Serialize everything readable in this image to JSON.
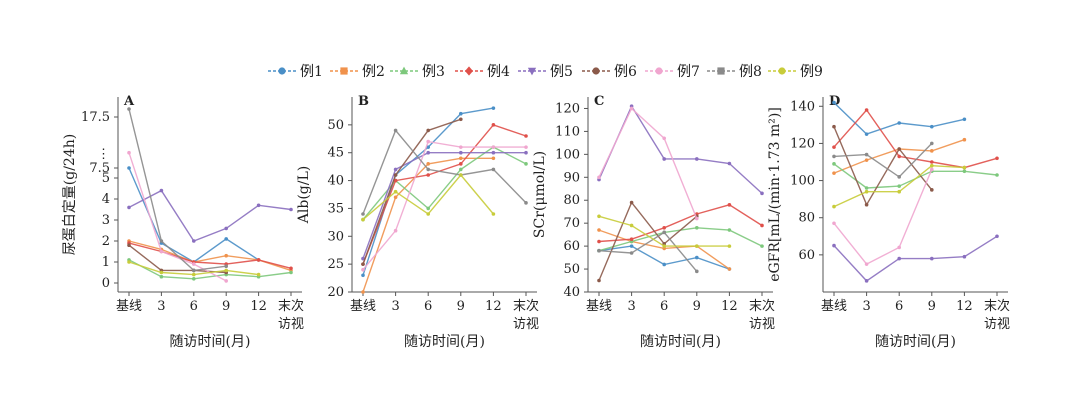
{
  "legend": [
    {
      "name": "例1",
      "color": "#4a8fc7",
      "marker": "circle"
    },
    {
      "name": "例2",
      "color": "#f0924c",
      "marker": "square"
    },
    {
      "name": "例3",
      "color": "#7dc87c",
      "marker": "triangle"
    },
    {
      "name": "例4",
      "color": "#e0504a",
      "marker": "diamond"
    },
    {
      "name": "例5",
      "color": "#8a6fbf",
      "marker": "triangle-down"
    },
    {
      "name": "例6",
      "color": "#8b5a4a",
      "marker": "circle"
    },
    {
      "name": "例7",
      "color": "#f0a6cf",
      "marker": "circle"
    },
    {
      "name": "例8",
      "color": "#8a8a8a",
      "marker": "square"
    },
    {
      "name": "例9",
      "color": "#c8cc3a",
      "marker": "circle"
    }
  ],
  "chart_data": [
    {
      "type": "line",
      "panel": "A",
      "x_categories": [
        "基线",
        "3",
        "6",
        "9",
        "12",
        "末次\n访视"
      ],
      "xlabel": "随访时间(月)",
      "ylabel": "尿蛋白定量(g/24h)",
      "yticks": [
        "0",
        "1",
        "2",
        "3",
        "4",
        "5",
        "7.5",
        "⋮",
        "17.5"
      ],
      "series": [
        {
          "name": "例1",
          "values": [
            7.5,
            1.9,
            1.0,
            2.1,
            1.1,
            null
          ]
        },
        {
          "name": "例2",
          "values": [
            2.0,
            1.6,
            1.0,
            1.3,
            1.1,
            0.6
          ]
        },
        {
          "name": "例3",
          "values": [
            1.1,
            0.3,
            0.2,
            0.4,
            0.3,
            0.5
          ]
        },
        {
          "name": "例4",
          "values": [
            1.9,
            1.5,
            1.0,
            0.9,
            1.1,
            0.7
          ]
        },
        {
          "name": "例5",
          "values": [
            3.6,
            4.4,
            2.0,
            2.6,
            3.7,
            3.5
          ]
        },
        {
          "name": "例6",
          "values": [
            1.8,
            0.6,
            0.6,
            0.5,
            null,
            null
          ]
        },
        {
          "name": "例7",
          "values": [
            10.5,
            1.5,
            0.9,
            0.1,
            null,
            null
          ]
        },
        {
          "name": "例8",
          "values": [
            18.5,
            2.0,
            0.6,
            0.8,
            null,
            null
          ]
        },
        {
          "name": "例9",
          "values": [
            1.0,
            0.5,
            0.4,
            0.6,
            0.4,
            null
          ]
        }
      ]
    },
    {
      "type": "line",
      "panel": "B",
      "x_categories": [
        "基线",
        "3",
        "6",
        "9",
        "12",
        "末次\n访视"
      ],
      "xlabel": "随访时间(月)",
      "ylabel": "Alb(g/L)",
      "ylim": [
        20,
        55
      ],
      "yticks": [
        "20",
        "25",
        "30",
        "35",
        "40",
        "45",
        "50"
      ],
      "series": [
        {
          "name": "例1",
          "values": [
            23,
            41,
            46,
            52,
            53,
            null
          ]
        },
        {
          "name": "例2",
          "values": [
            20,
            37,
            43,
            44,
            44,
            null
          ]
        },
        {
          "name": "例3",
          "values": [
            33,
            40,
            35,
            42,
            46,
            43
          ]
        },
        {
          "name": "例4",
          "values": [
            25,
            40,
            41,
            43,
            50,
            48
          ]
        },
        {
          "name": "例5",
          "values": [
            26,
            42,
            45,
            45,
            45,
            45
          ]
        },
        {
          "name": "例6",
          "values": [
            25,
            41,
            49,
            51,
            null,
            null
          ]
        },
        {
          "name": "例7",
          "values": [
            24,
            31,
            47,
            46,
            46,
            46
          ]
        },
        {
          "name": "例8",
          "values": [
            34,
            49,
            42,
            41,
            42,
            36
          ]
        },
        {
          "name": "例9",
          "values": [
            33,
            38,
            34,
            41,
            34,
            null
          ]
        }
      ]
    },
    {
      "type": "line",
      "panel": "C",
      "x_categories": [
        "基线",
        "3",
        "6",
        "9",
        "12",
        "末次\n访视"
      ],
      "xlabel": "随访时间(月)",
      "ylabel": "SCr(μmol/L)",
      "ylim": [
        40,
        125
      ],
      "yticks": [
        "40",
        "50",
        "60",
        "70",
        "80",
        "90",
        "100",
        "110",
        "120"
      ],
      "series": [
        {
          "name": "例1",
          "values": [
            58,
            60,
            52,
            55,
            50,
            null
          ]
        },
        {
          "name": "例2",
          "values": [
            67,
            62,
            59,
            60,
            50,
            null
          ]
        },
        {
          "name": "例3",
          "values": [
            58,
            62,
            66,
            68,
            67,
            60
          ]
        },
        {
          "name": "例4",
          "values": [
            62,
            63,
            68,
            74,
            78,
            69
          ]
        },
        {
          "name": "例5",
          "values": [
            89,
            121,
            98,
            98,
            96,
            83
          ]
        },
        {
          "name": "例6",
          "values": [
            45,
            79,
            61,
            73,
            null,
            null
          ]
        },
        {
          "name": "例7",
          "values": [
            90,
            120,
            107,
            72,
            null,
            null
          ]
        },
        {
          "name": "例8",
          "values": [
            58,
            57,
            66,
            49,
            null,
            null
          ]
        },
        {
          "name": "例9",
          "values": [
            73,
            69,
            60,
            60,
            60,
            null
          ]
        }
      ]
    },
    {
      "type": "line",
      "panel": "D",
      "x_categories": [
        "基线",
        "3",
        "6",
        "9",
        "12",
        "末次\n访视"
      ],
      "xlabel": "随访时间(月)",
      "ylabel": "eGFR[mL/(min·1.73 m²)]",
      "ylim": [
        40,
        145
      ],
      "yticks": [
        "60",
        "80",
        "100",
        "120",
        "140"
      ],
      "series": [
        {
          "name": "例1",
          "values": [
            142,
            125,
            131,
            129,
            133,
            null
          ]
        },
        {
          "name": "例2",
          "values": [
            104,
            111,
            117,
            116,
            122,
            null
          ]
        },
        {
          "name": "例3",
          "values": [
            109,
            96,
            97,
            105,
            105,
            103
          ]
        },
        {
          "name": "例4",
          "values": [
            118,
            138,
            113,
            110,
            107,
            112
          ]
        },
        {
          "name": "例5",
          "values": [
            65,
            46,
            58,
            58,
            59,
            70
          ]
        },
        {
          "name": "例6",
          "values": [
            129,
            87,
            117,
            95,
            null,
            null
          ]
        },
        {
          "name": "例7",
          "values": [
            77,
            55,
            64,
            106,
            null,
            null
          ]
        },
        {
          "name": "例8",
          "values": [
            113,
            114,
            102,
            120,
            null,
            null
          ]
        },
        {
          "name": "例9",
          "values": [
            86,
            94,
            94,
            108,
            107,
            null
          ]
        }
      ]
    }
  ]
}
